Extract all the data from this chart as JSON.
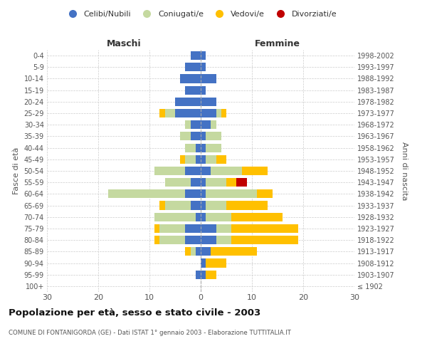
{
  "age_groups": [
    "100+",
    "95-99",
    "90-94",
    "85-89",
    "80-84",
    "75-79",
    "70-74",
    "65-69",
    "60-64",
    "55-59",
    "50-54",
    "45-49",
    "40-44",
    "35-39",
    "30-34",
    "25-29",
    "20-24",
    "15-19",
    "10-14",
    "5-9",
    "0-4"
  ],
  "birth_years": [
    "≤ 1902",
    "1903-1907",
    "1908-1912",
    "1913-1917",
    "1918-1922",
    "1923-1927",
    "1928-1932",
    "1933-1937",
    "1938-1942",
    "1943-1947",
    "1948-1952",
    "1953-1957",
    "1958-1962",
    "1963-1967",
    "1968-1972",
    "1973-1977",
    "1978-1982",
    "1983-1987",
    "1988-1992",
    "1993-1997",
    "1998-2002"
  ],
  "maschi_celibi": [
    0,
    1,
    0,
    1,
    3,
    3,
    1,
    2,
    3,
    2,
    3,
    1,
    1,
    2,
    2,
    5,
    5,
    3,
    4,
    3,
    2
  ],
  "maschi_coniugati": [
    0,
    0,
    0,
    1,
    5,
    5,
    8,
    5,
    15,
    5,
    6,
    2,
    2,
    2,
    1,
    2,
    0,
    0,
    0,
    0,
    0
  ],
  "maschi_vedovi": [
    0,
    0,
    0,
    1,
    1,
    1,
    0,
    1,
    0,
    0,
    0,
    1,
    0,
    0,
    0,
    1,
    0,
    0,
    0,
    0,
    0
  ],
  "maschi_divorziati": [
    0,
    0,
    0,
    0,
    0,
    0,
    0,
    0,
    0,
    0,
    0,
    0,
    0,
    0,
    0,
    0,
    0,
    0,
    0,
    0,
    0
  ],
  "femmine_celibi": [
    0,
    1,
    1,
    2,
    3,
    3,
    1,
    1,
    1,
    1,
    2,
    1,
    1,
    1,
    2,
    3,
    3,
    1,
    3,
    1,
    1
  ],
  "femmine_coniugati": [
    0,
    0,
    0,
    0,
    3,
    3,
    5,
    4,
    10,
    4,
    6,
    2,
    3,
    3,
    1,
    1,
    0,
    0,
    0,
    0,
    0
  ],
  "femmine_vedovi": [
    0,
    2,
    4,
    9,
    13,
    13,
    10,
    8,
    3,
    2,
    5,
    2,
    0,
    0,
    0,
    1,
    0,
    0,
    0,
    0,
    0
  ],
  "femmine_divorziati": [
    0,
    0,
    0,
    0,
    0,
    0,
    0,
    0,
    0,
    2,
    0,
    0,
    0,
    0,
    0,
    0,
    0,
    0,
    0,
    0,
    0
  ],
  "color_celibi": "#4472c4",
  "color_coniugati": "#c5d9a0",
  "color_vedovi": "#ffc000",
  "color_divorziati": "#c00000",
  "title": "Popolazione per età, sesso e stato civile - 2003",
  "subtitle": "COMUNE DI FONTANIGORDA (GE) - Dati ISTAT 1° gennaio 2003 - Elaborazione TUTTITALIA.IT",
  "xlabel_maschi": "Maschi",
  "xlabel_femmine": "Femmine",
  "ylabel_left": "Fasce di età",
  "ylabel_right": "Anni di nascita",
  "xlim": 30,
  "bg_color": "#ffffff",
  "grid_color": "#cccccc"
}
